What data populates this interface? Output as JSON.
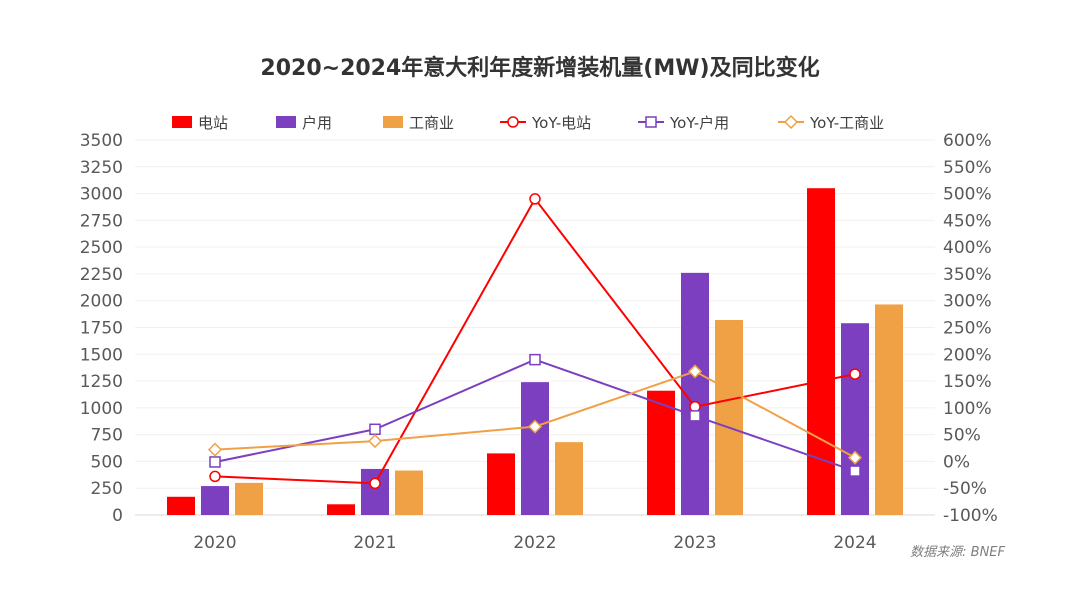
{
  "chart_data": {
    "type": "bar+line",
    "title": "2020~2024年意大利年度新增装机量(MW)及同比变化",
    "categories": [
      "2020",
      "2021",
      "2022",
      "2023",
      "2024"
    ],
    "bar_series": [
      {
        "name": "电站",
        "color": "#ff0000",
        "values": [
          170,
          100,
          575,
          1160,
          3050
        ]
      },
      {
        "name": "户用",
        "color": "#7b3fbf",
        "values": [
          270,
          430,
          1240,
          2260,
          1790
        ]
      },
      {
        "name": "工商业",
        "color": "#f0a045",
        "values": [
          300,
          415,
          680,
          1820,
          1965
        ]
      }
    ],
    "line_series": [
      {
        "name": "YoY-电站",
        "color": "#ff0000",
        "marker": "circle",
        "values": [
          -28,
          -41,
          490,
          102,
          163
        ]
      },
      {
        "name": "YoY-户用",
        "color": "#7b3fbf",
        "marker": "square",
        "values": [
          -1,
          60,
          190,
          85,
          -18
        ]
      },
      {
        "name": "YoY-工商业",
        "color": "#f0a045",
        "marker": "diamond",
        "values": [
          22,
          38,
          65,
          168,
          7
        ]
      }
    ],
    "y_left": {
      "min": 0,
      "max": 3500,
      "ticks": [
        "0",
        "250",
        "500",
        "750",
        "1000",
        "1250",
        "1500",
        "1750",
        "2000",
        "2250",
        "2500",
        "2750",
        "3000",
        "3250",
        "3500"
      ]
    },
    "y_right": {
      "min": -100,
      "max": 600,
      "ticks": [
        "-100%",
        "-50%",
        "0%",
        "50%",
        "100%",
        "150%",
        "200%",
        "250%",
        "300%",
        "350%",
        "400%",
        "450%",
        "500%",
        "550%",
        "600%"
      ]
    },
    "source": "数据来源: BNEF",
    "legend_position": "top"
  }
}
